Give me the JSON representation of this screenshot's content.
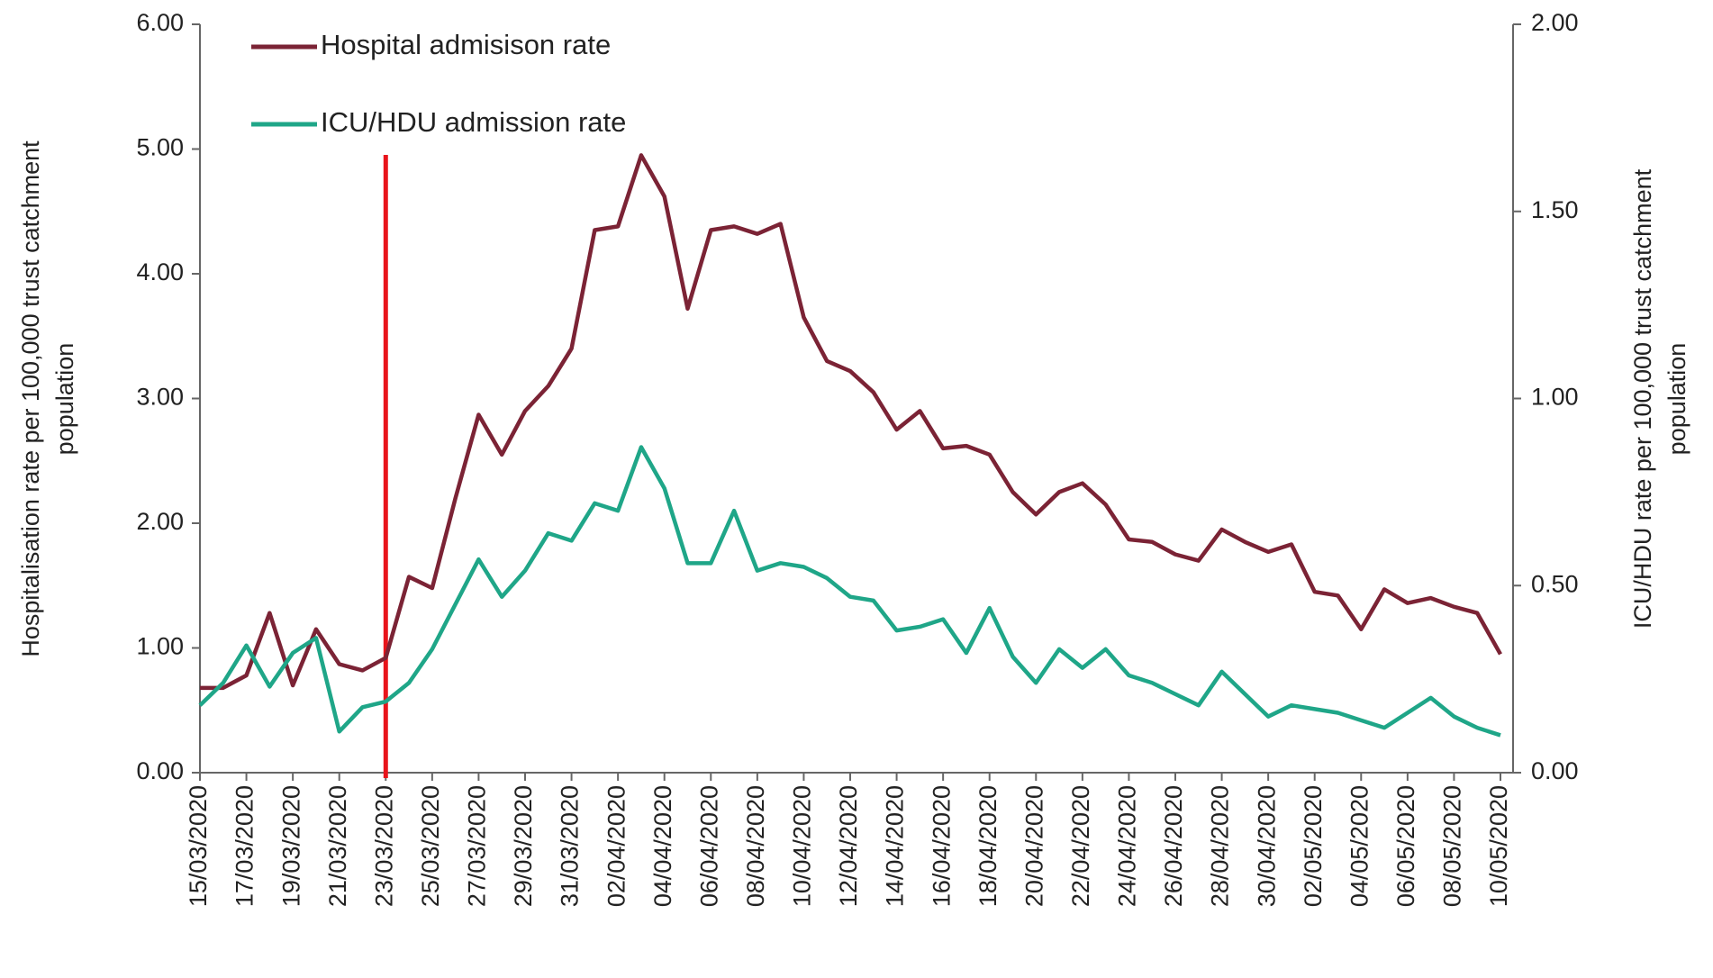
{
  "chart_data": {
    "type": "line",
    "y_label": [
      "Hospitalisation rate  per 100,000  trust catchment",
      "population"
    ],
    "y2_label": [
      "ICU/HDU  rate per 100,000 trust catchment",
      "population"
    ],
    "categories": [
      "15/03/2020",
      null,
      "17/03/2020",
      null,
      "19/03/2020",
      null,
      "21/03/2020",
      null,
      "23/03/2020",
      null,
      "25/03/2020",
      null,
      "27/03/2020",
      null,
      "29/03/2020",
      null,
      "31/03/2020",
      null,
      "02/04/2020",
      null,
      "04/04/2020",
      null,
      "06/04/2020",
      null,
      "08/04/2020",
      null,
      "10/04/2020",
      null,
      "12/04/2020",
      null,
      "14/04/2020",
      null,
      "16/04/2020",
      null,
      "18/04/2020",
      null,
      "20/04/2020",
      null,
      "22/04/2020",
      null,
      "24/04/2020",
      null,
      "26/04/2020",
      null,
      "28/04/2020",
      null,
      "30/04/2020",
      null,
      "02/05/2020",
      null,
      "04/05/2020",
      null,
      "06/05/2020",
      null,
      "08/05/2020",
      null,
      "10/05/2020"
    ],
    "series": [
      {
        "name": "Hospital admisison rate",
        "color": "#7b2335",
        "axis": "y",
        "values": [
          0.68,
          0.68,
          0.78,
          1.28,
          0.7,
          1.15,
          0.87,
          0.82,
          0.92,
          1.57,
          1.48,
          2.2,
          2.87,
          2.55,
          2.9,
          3.1,
          3.4,
          4.35,
          4.38,
          4.95,
          4.62,
          3.72,
          4.35,
          4.38,
          4.32,
          4.4,
          3.65,
          3.3,
          3.22,
          3.05,
          2.75,
          2.9,
          2.6,
          2.62,
          2.55,
          2.25,
          2.07,
          2.25,
          2.32,
          2.15,
          1.87,
          1.85,
          1.75,
          1.7,
          1.95,
          1.85,
          1.77,
          1.83,
          1.45,
          1.42,
          1.15,
          1.47,
          1.36,
          1.4,
          1.33,
          1.28,
          0.95
        ]
      },
      {
        "name": "ICU/HDU admission rate",
        "color": "#1fa688",
        "axis": "y2",
        "values": [
          0.18,
          0.24,
          0.34,
          0.23,
          0.32,
          0.36,
          0.11,
          0.175,
          0.19,
          0.24,
          0.33,
          0.45,
          0.57,
          0.47,
          0.54,
          0.64,
          0.62,
          0.72,
          0.7,
          0.87,
          0.76,
          0.56,
          0.56,
          0.7,
          0.54,
          0.56,
          0.55,
          0.52,
          0.47,
          0.46,
          0.38,
          0.39,
          0.41,
          0.32,
          0.44,
          0.31,
          0.24,
          0.33,
          0.28,
          0.33,
          0.26,
          0.24,
          0.21,
          0.18,
          0.27,
          0.21,
          0.15,
          0.18,
          0.17,
          0.16,
          0.14,
          0.12,
          0.16,
          0.2,
          0.15,
          0.12,
          0.1
        ]
      }
    ],
    "ylim": [
      0,
      6
    ],
    "yticks": [
      {
        "value": 0,
        "label": "0.00"
      },
      {
        "value": 1,
        "label": "1.00"
      },
      {
        "value": 2,
        "label": "2.00"
      },
      {
        "value": 3,
        "label": "3.00"
      },
      {
        "value": 4,
        "label": "4.00"
      },
      {
        "value": 5,
        "label": "5.00"
      },
      {
        "value": 6,
        "label": "6.00"
      }
    ],
    "y2lim": [
      0,
      2
    ],
    "y2ticks": [
      {
        "value": 0,
        "label": "0.00"
      },
      {
        "value": 0.5,
        "label": "0.50"
      },
      {
        "value": 1,
        "label": "1.00"
      },
      {
        "value": 1.5,
        "label": "1.50"
      },
      {
        "value": 2,
        "label": "2.00"
      }
    ],
    "vline": {
      "x": "23/03/2020",
      "color": "#e8141b"
    },
    "legend": "upper left"
  }
}
